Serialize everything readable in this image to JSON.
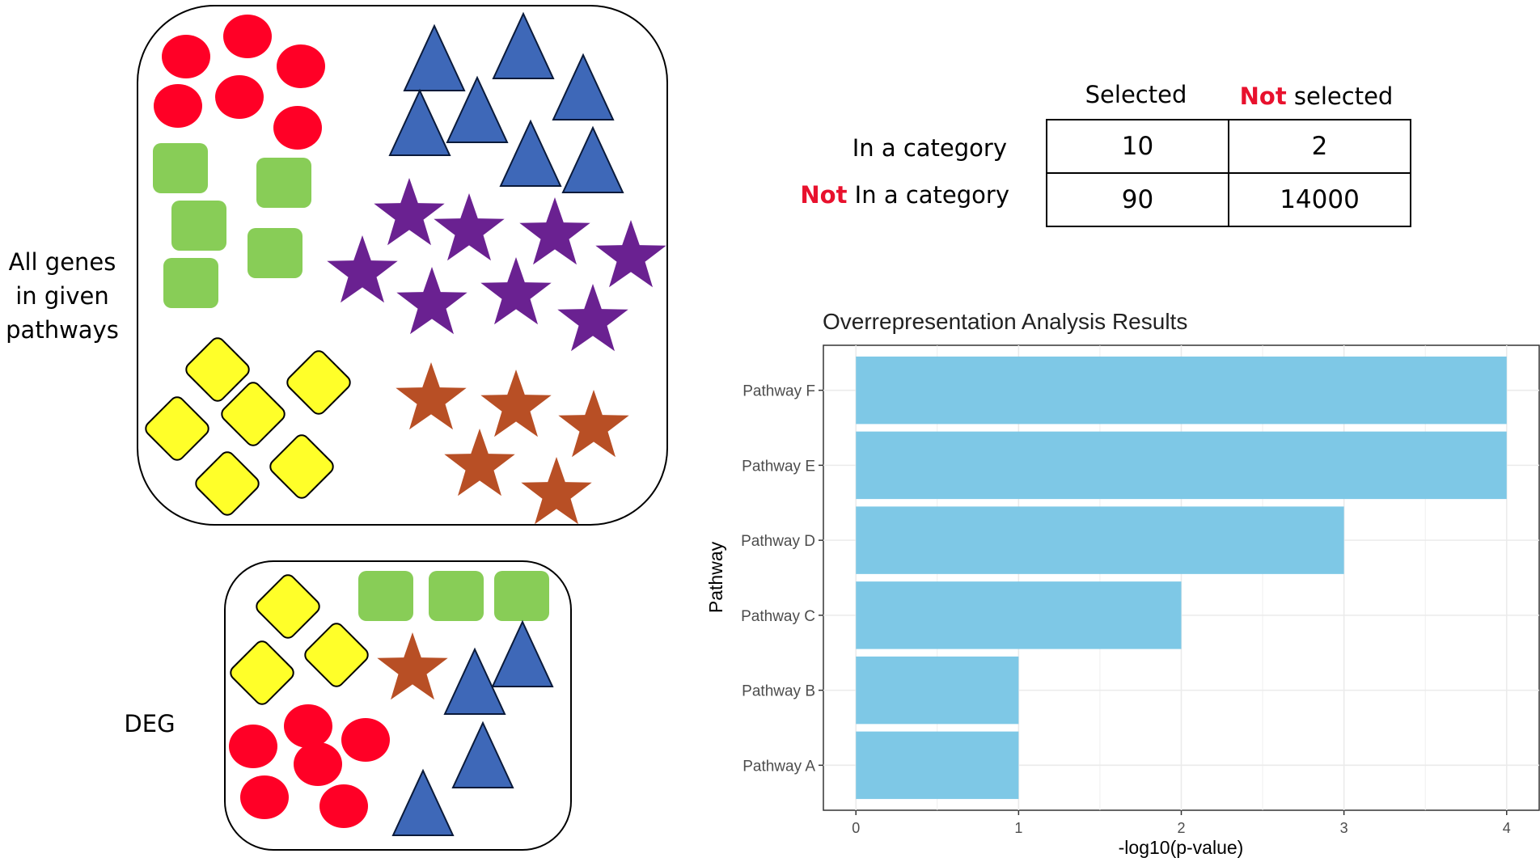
{
  "left_panel": {
    "all_genes_label": [
      "All genes",
      "in given",
      "pathways"
    ],
    "deg_label": "DEG"
  },
  "table": {
    "col_header_selected": "Selected",
    "col_header_not_prefix": "Not",
    "col_header_not_suffix": " selected",
    "row_header_in": "In a category",
    "row_header_not_prefix": "Not",
    "row_header_not_suffix": " In a category",
    "cells": [
      [
        "10",
        "2"
      ],
      [
        "90",
        "14000"
      ]
    ],
    "highlight_color": "#e8112d"
  },
  "chart_data": {
    "type": "bar",
    "orientation": "horizontal",
    "title": "Overrepresentation Analysis Results",
    "xlabel": "-log10(p-value)",
    "ylabel": "Pathway",
    "categories": [
      "Pathway A",
      "Pathway B",
      "Pathway C",
      "Pathway D",
      "Pathway E",
      "Pathway F"
    ],
    "values": [
      1,
      1,
      2,
      3,
      4,
      4
    ],
    "xlim": [
      0,
      4.2
    ],
    "xticks": [
      "0",
      "1",
      "2",
      "3",
      "4"
    ],
    "bar_color": "#7ec8e6",
    "grid": true
  }
}
